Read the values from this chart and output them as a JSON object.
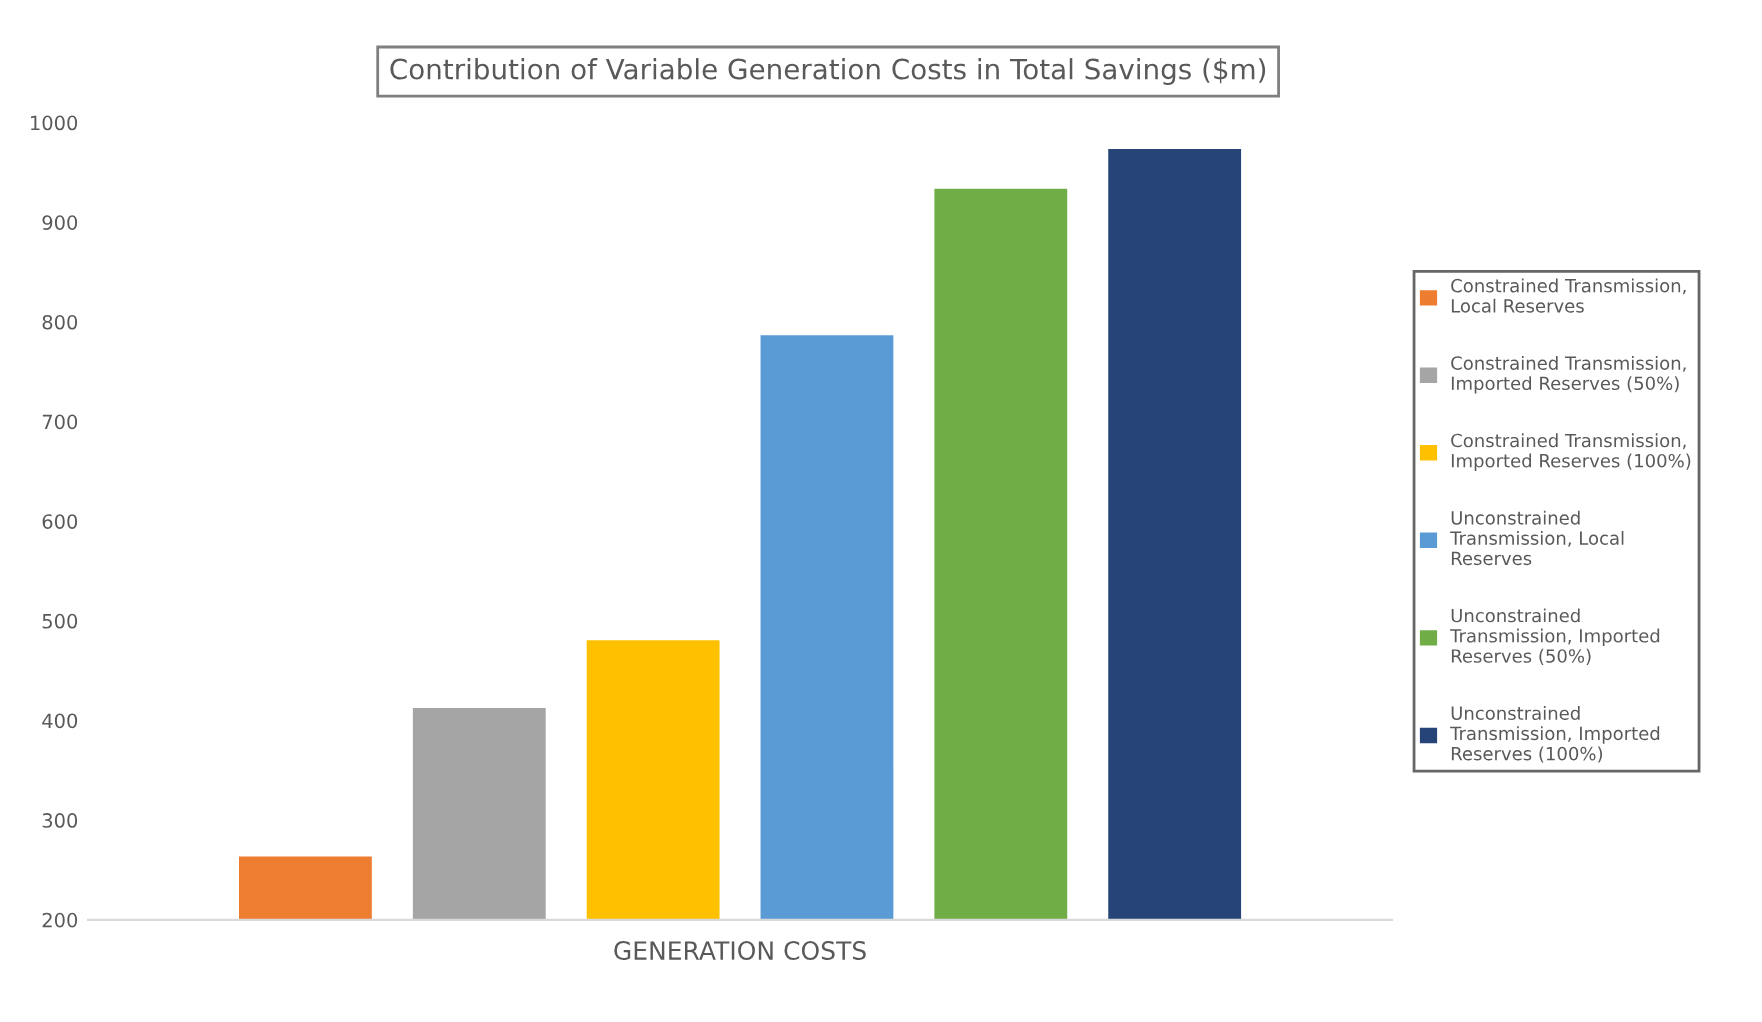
{
  "chart_data": {
    "type": "bar",
    "title": "Contribution of Variable Generation Costs in Total Savings ($m)",
    "xlabel": "GENERATION COSTS",
    "categories": [
      null
    ],
    "series": [
      {
        "name": "Constrained Transmission, Local Reserves",
        "color": "#ed7d31",
        "values": [
          265
        ]
      },
      {
        "name": "Constrained Transmission, Imported Reserves (50%)",
        "color": "#a5a5a5",
        "values": [
          414
        ]
      },
      {
        "name": "Constrained Transmission, Imported Reserves (100%)",
        "color": "#ffc000",
        "values": [
          482
        ]
      },
      {
        "name": "Unconstrained Transmission, Local Reserves",
        "color": "#5b9bd5",
        "values": [
          788
        ]
      },
      {
        "name": "Unconstrained Transmission, Imported Reserves (50%)",
        "color": "#70ad47",
        "values": [
          935
        ]
      },
      {
        "name": "Unconstrained Transmission, Imported Reserves (100%)",
        "color": "#264478",
        "values": [
          975
        ]
      }
    ],
    "ylim": [
      200,
      1000
    ],
    "yticks": [
      200,
      300,
      400,
      500,
      600,
      700,
      800,
      900,
      1000
    ],
    "grid": false,
    "legend": "right"
  }
}
